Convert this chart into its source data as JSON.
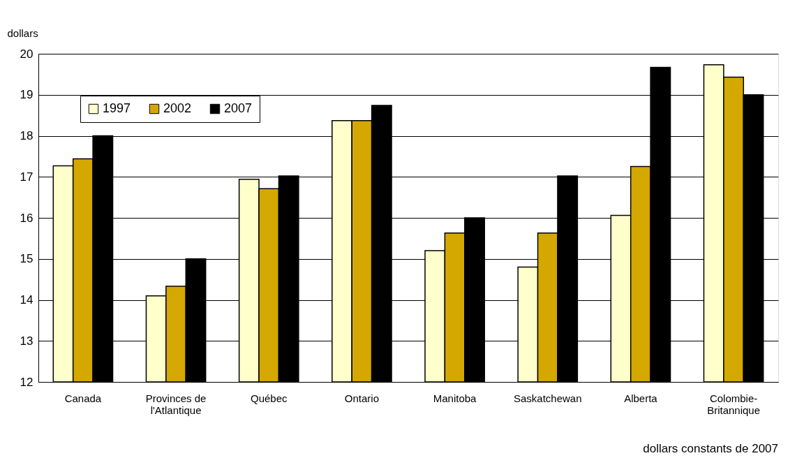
{
  "chart_data": {
    "type": "bar",
    "ylabel": "dollars",
    "categories": [
      "Canada",
      "Provinces de l'Atlantique",
      "Québec",
      "Ontario",
      "Manitoba",
      "Saskatchewan",
      "Alberta",
      "Colombie-Britannique"
    ],
    "series": [
      {
        "name": "1997",
        "color": "#ffffcc",
        "values": [
          17.27,
          14.1,
          16.94,
          18.37,
          15.2,
          14.8,
          16.06,
          19.73
        ]
      },
      {
        "name": "2002",
        "color": "#d4a800",
        "values": [
          17.44,
          14.33,
          16.71,
          18.37,
          15.63,
          15.63,
          17.25,
          19.43
        ]
      },
      {
        "name": "2007",
        "color": "#000000",
        "values": [
          18.0,
          15.0,
          17.02,
          18.74,
          16.0,
          17.02,
          19.67,
          19.0
        ]
      }
    ],
    "ylim": [
      12,
      20
    ],
    "yticks": [
      12,
      13,
      14,
      15,
      16,
      17,
      18,
      19,
      20
    ],
    "grid": "y",
    "legend": "top left",
    "annotations": [
      "dollars constants de 2007"
    ]
  }
}
